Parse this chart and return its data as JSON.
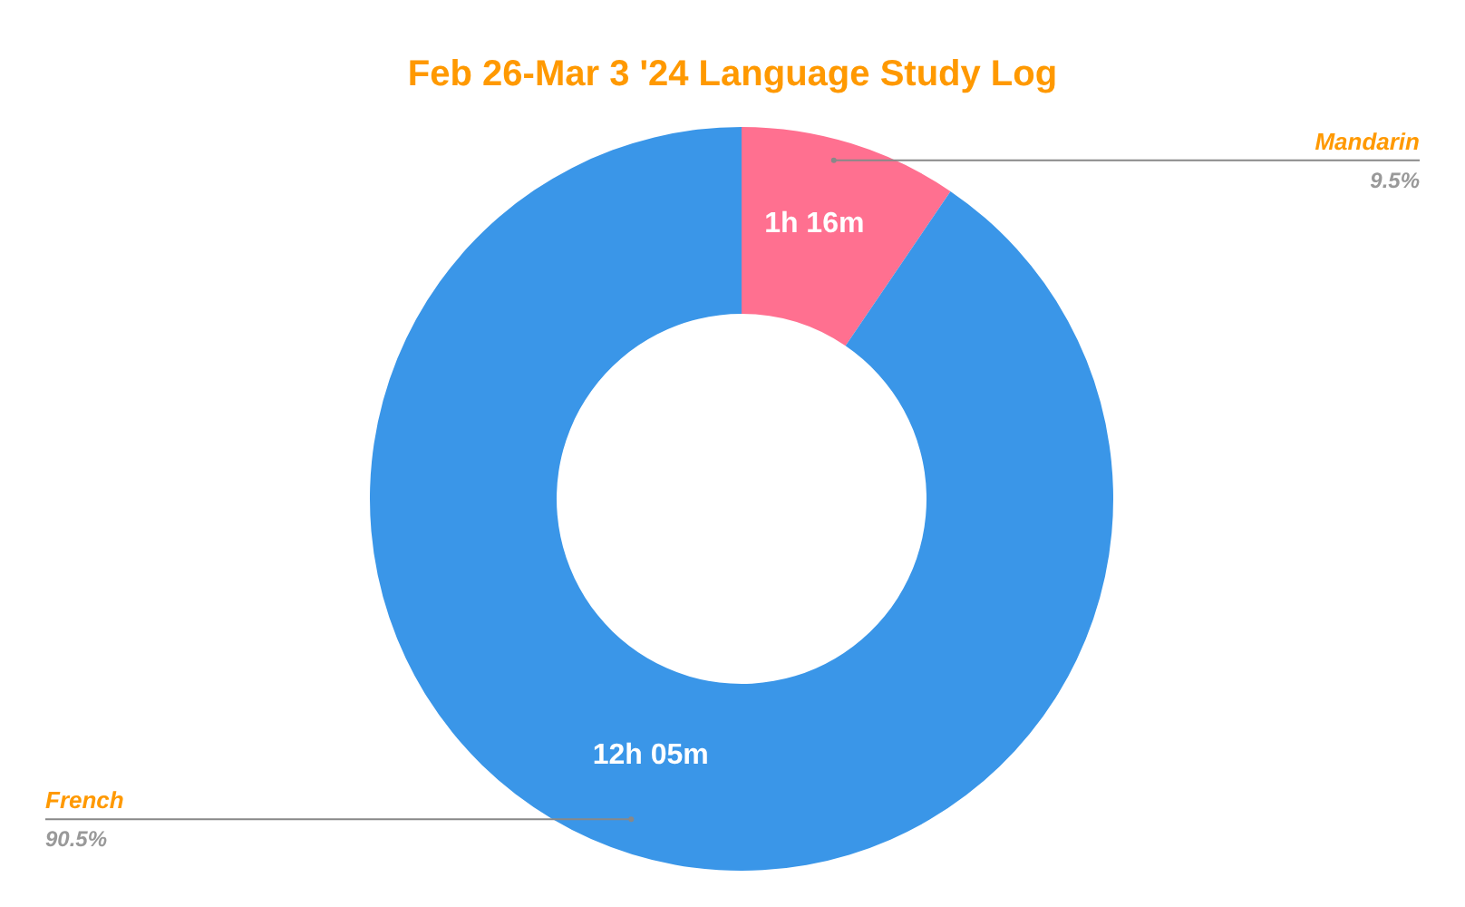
{
  "chart_data": {
    "type": "donut",
    "title": "Feb 26-Mar 3 '24 Language Study Log",
    "categories": [
      "Mandarin",
      "French"
    ],
    "values": [
      9.5,
      90.5
    ],
    "value_labels": [
      "9.5%",
      "90.5%"
    ],
    "annotations": [
      "1h 16m",
      "12h 05m"
    ],
    "colors": [
      "#ff7090",
      "#3a96e8"
    ]
  }
}
